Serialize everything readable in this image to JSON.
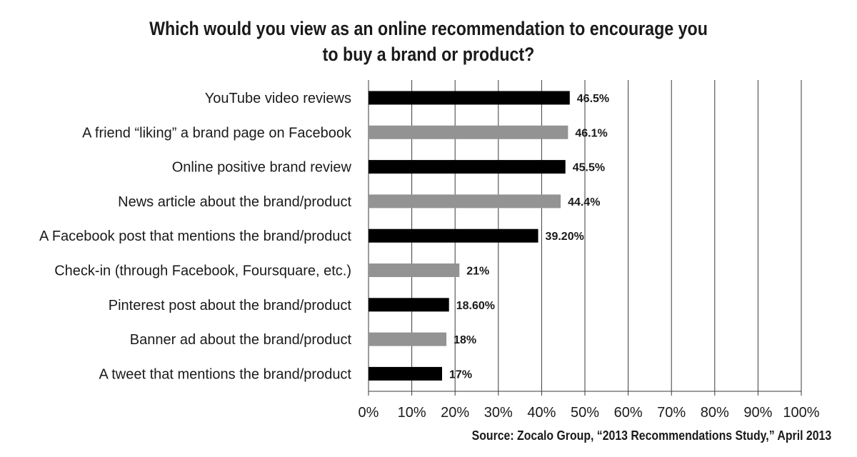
{
  "chart_data": {
    "type": "bar",
    "orientation": "horizontal",
    "title": [
      "Which would you view as an online recommendation to encourage you",
      "to buy a brand or product?"
    ],
    "categories": [
      "YouTube video reviews",
      "A friend “liking” a brand page on Facebook",
      "Online positive brand review",
      "News article about the brand/product",
      "A Facebook post that mentions the brand/product",
      "Check-in (through Facebook, Foursquare, etc.)",
      "Pinterest post about the brand/product",
      "Banner ad about the brand/product",
      "A tweet that mentions the brand/product"
    ],
    "values": [
      46.5,
      46.1,
      45.5,
      44.4,
      39.2,
      21,
      18.6,
      18,
      17
    ],
    "data_labels": [
      "46.5%",
      "46.1%",
      "45.5%",
      "44.4%",
      "39.20%",
      "21%",
      "18.60%",
      "18%",
      "17%"
    ],
    "bar_colors": [
      "#000000",
      "#939393",
      "#000000",
      "#939393",
      "#000000",
      "#939393",
      "#000000",
      "#939393",
      "#000000"
    ],
    "xlim": [
      0,
      100
    ],
    "x_ticks": [
      "0%",
      "10%",
      "20%",
      "30%",
      "40%",
      "50%",
      "60%",
      "70%",
      "80%",
      "90%",
      "100%"
    ],
    "grid": "vertical",
    "xlabel": "",
    "ylabel": "",
    "legend": "none"
  },
  "source": "Source: Zocalo Group, “2013 Recommendations Study,” April 2013"
}
